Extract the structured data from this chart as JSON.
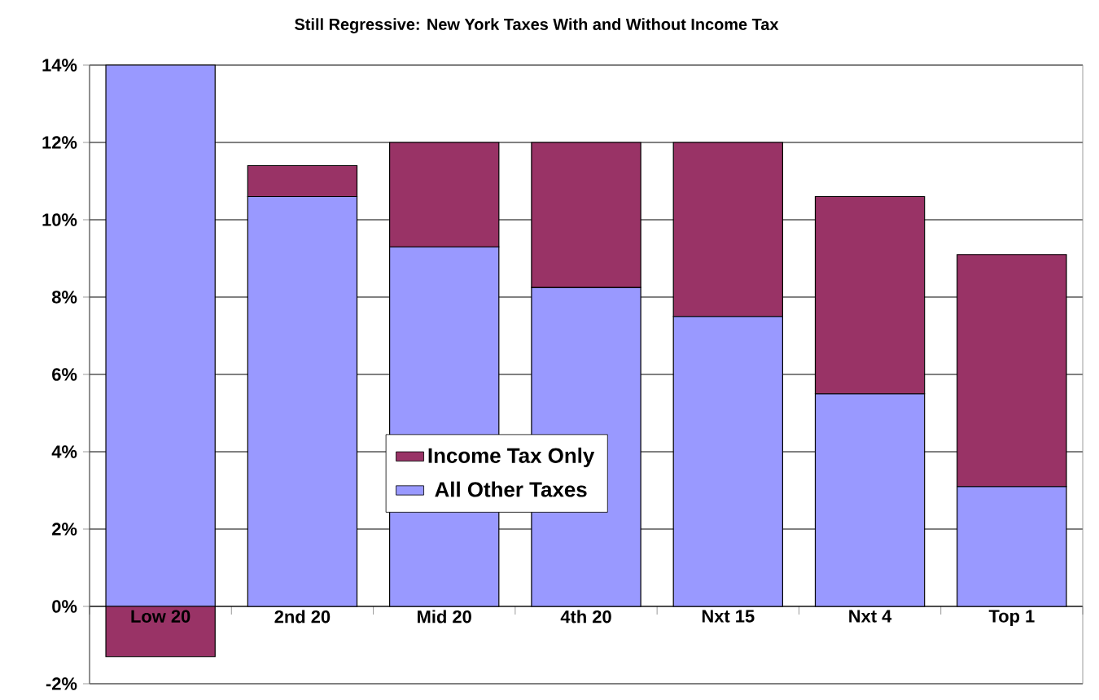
{
  "chart_data": {
    "type": "bar",
    "stacked": true,
    "title": "Still Regressive: New York Taxes With and Without  Income Tax",
    "categories": [
      "Low 20",
      "2nd 20",
      "Mid 20",
      "4th 20",
      "Nxt 15",
      "Nxt 4",
      "Top 1"
    ],
    "series": [
      {
        "name": "All Other Taxes",
        "color": "#9999ff",
        "values": [
          14.0,
          10.6,
          9.3,
          8.25,
          7.5,
          5.5,
          3.1
        ]
      },
      {
        "name": "Income Tax Only",
        "color": "#993366",
        "values": [
          -1.3,
          0.8,
          2.7,
          3.75,
          4.5,
          5.1,
          6.0
        ]
      }
    ],
    "ylim": [
      -2,
      14
    ],
    "yticks": [
      {
        "value": -2,
        "label": "-2%"
      },
      {
        "value": 0,
        "label": "0%"
      },
      {
        "value": 2,
        "label": "2%"
      },
      {
        "value": 4,
        "label": "4%"
      },
      {
        "value": 6,
        "label": "6%"
      },
      {
        "value": 8,
        "label": "8%"
      },
      {
        "value": 10,
        "label": "10%"
      },
      {
        "value": 12,
        "label": "12%"
      },
      {
        "value": 14,
        "label": "14%"
      }
    ],
    "grid": "y",
    "legend": "center"
  }
}
